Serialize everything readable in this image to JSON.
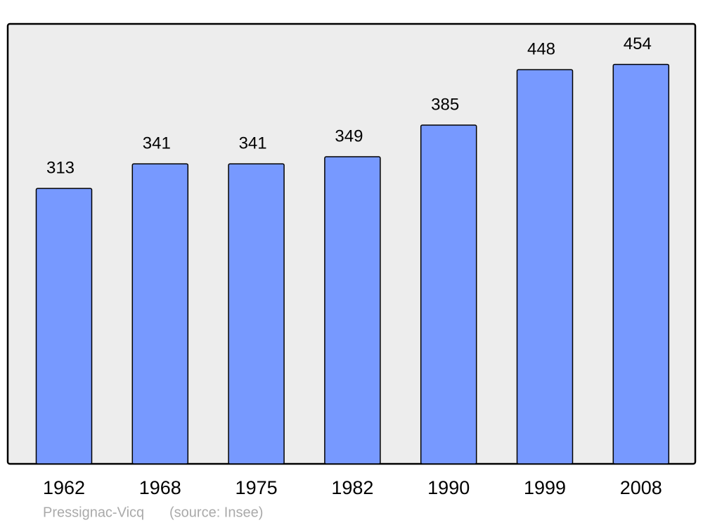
{
  "chart_data": {
    "type": "bar",
    "categories": [
      "1962",
      "1968",
      "1975",
      "1982",
      "1990",
      "1999",
      "2008"
    ],
    "values": [
      313,
      341,
      341,
      349,
      385,
      448,
      454
    ],
    "color": "#7799ff",
    "ylim": [
      0,
      500
    ],
    "place": "Pressignac-Vicq",
    "source": "(source: Insee)"
  }
}
